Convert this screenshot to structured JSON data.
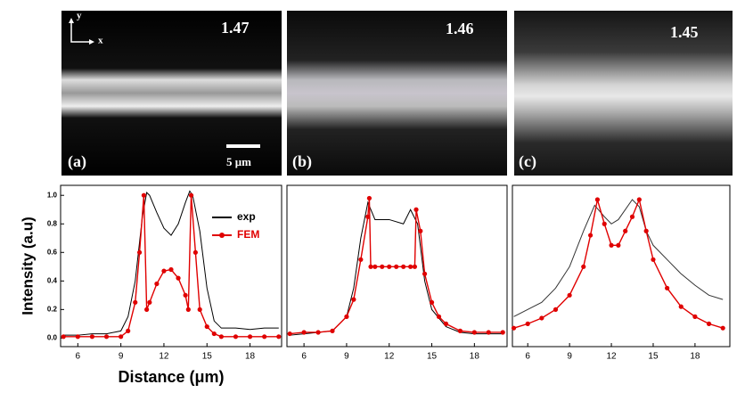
{
  "images": [
    {
      "label": "(a)",
      "value": "1.47",
      "scale": "5 μm",
      "axis_y": "y",
      "axis_x": "x"
    },
    {
      "label": "(b)",
      "value": "1.46"
    },
    {
      "label": "(c)",
      "value": "1.45"
    }
  ],
  "chart_data": [
    {
      "type": "line",
      "xlabel": "Distance (μm)",
      "ylabel": "Intensity (a.u)",
      "xlim": [
        4.8,
        20.2
      ],
      "ylim": [
        -0.06,
        1.07
      ],
      "xticks": [
        6,
        9,
        12,
        15,
        18
      ],
      "yticks": [
        {
          "value": 0,
          "label": "0.0"
        },
        0.2,
        0.4,
        0.6,
        0.8,
        {
          "value": 1,
          "label": "1.0"
        }
      ],
      "legend": "upper right",
      "series": [
        {
          "name": "exp",
          "color": "#000000",
          "markers": false,
          "x": [
            5,
            6,
            7,
            8,
            9,
            9.5,
            10,
            10.5,
            10.8,
            11,
            11.5,
            12,
            12.5,
            13,
            13.5,
            13.8,
            14,
            14.5,
            15,
            15.5,
            16,
            17,
            18,
            19,
            20
          ],
          "values": [
            0.02,
            0.02,
            0.03,
            0.03,
            0.05,
            0.15,
            0.4,
            0.85,
            1.02,
            1.0,
            0.88,
            0.77,
            0.72,
            0.8,
            0.95,
            1.03,
            1.0,
            0.75,
            0.35,
            0.12,
            0.07,
            0.07,
            0.06,
            0.07,
            0.07
          ]
        },
        {
          "name": "FEM",
          "color": "#e00000",
          "markers": true,
          "x": [
            5,
            6,
            7,
            8,
            9,
            9.5,
            10,
            10.3,
            10.6,
            10.8,
            11,
            11.5,
            12,
            12.5,
            13,
            13.5,
            13.7,
            13.9,
            14.2,
            14.5,
            15,
            15.5,
            16,
            17,
            18,
            19,
            20
          ],
          "values": [
            0.01,
            0.01,
            0.01,
            0.01,
            0.01,
            0.05,
            0.25,
            0.6,
            1.0,
            0.2,
            0.25,
            0.38,
            0.47,
            0.48,
            0.42,
            0.3,
            0.2,
            1.0,
            0.6,
            0.2,
            0.08,
            0.03,
            0.01,
            0.01,
            0.01,
            0.01,
            0.01
          ]
        }
      ]
    },
    {
      "type": "line",
      "xlim": [
        4.8,
        20.3
      ],
      "ylim": [
        -0.06,
        1.07
      ],
      "xticks": [
        6,
        9,
        12,
        15,
        18
      ],
      "series": [
        {
          "name": "exp",
          "color": "#000000",
          "markers": false,
          "x": [
            5,
            6,
            7,
            8,
            9,
            9.5,
            10,
            10.5,
            11,
            12,
            13,
            13.5,
            14,
            14.5,
            15,
            16,
            17,
            18,
            19,
            20
          ],
          "values": [
            0.02,
            0.03,
            0.04,
            0.05,
            0.15,
            0.35,
            0.7,
            0.95,
            0.83,
            0.83,
            0.8,
            0.9,
            0.8,
            0.4,
            0.2,
            0.08,
            0.04,
            0.03,
            0.03,
            0.03
          ]
        },
        {
          "name": "FEM",
          "color": "#e00000",
          "markers": true,
          "x": [
            5,
            6,
            7,
            8,
            9,
            9.5,
            10,
            10.5,
            10.6,
            10.7,
            11,
            11.5,
            12,
            12.5,
            13,
            13.5,
            13.8,
            13.9,
            14.2,
            14.5,
            15,
            15.5,
            16,
            17,
            18,
            19,
            20
          ],
          "values": [
            0.03,
            0.04,
            0.04,
            0.05,
            0.15,
            0.27,
            0.55,
            0.85,
            0.98,
            0.5,
            0.5,
            0.5,
            0.5,
            0.5,
            0.5,
            0.5,
            0.5,
            0.9,
            0.75,
            0.45,
            0.25,
            0.15,
            0.1,
            0.05,
            0.04,
            0.04,
            0.04
          ]
        }
      ]
    },
    {
      "type": "line",
      "xlim": [
        4.9,
        20.5
      ],
      "ylim": [
        -0.06,
        1.07
      ],
      "xticks": [
        6,
        9,
        12,
        15,
        18
      ],
      "series": [
        {
          "name": "exp",
          "color": "#333333",
          "markers": false,
          "x": [
            5,
            6,
            7,
            8,
            9,
            10,
            10.8,
            11.5,
            12,
            12.5,
            13.5,
            14,
            14.5,
            15,
            16,
            17,
            18,
            19,
            20
          ],
          "values": [
            0.15,
            0.2,
            0.25,
            0.35,
            0.5,
            0.75,
            0.93,
            0.85,
            0.8,
            0.83,
            0.97,
            0.92,
            0.75,
            0.65,
            0.55,
            0.45,
            0.37,
            0.3,
            0.27
          ]
        },
        {
          "name": "FEM",
          "color": "#e00000",
          "markers": true,
          "x": [
            5,
            6,
            7,
            8,
            9,
            10,
            10.5,
            11,
            11.5,
            12,
            12.5,
            13,
            13.5,
            14,
            14.5,
            15,
            16,
            17,
            18,
            19,
            20
          ],
          "values": [
            0.07,
            0.1,
            0.14,
            0.2,
            0.3,
            0.5,
            0.72,
            0.97,
            0.8,
            0.65,
            0.65,
            0.75,
            0.85,
            0.97,
            0.75,
            0.55,
            0.35,
            0.22,
            0.15,
            0.1,
            0.07
          ]
        }
      ]
    }
  ]
}
